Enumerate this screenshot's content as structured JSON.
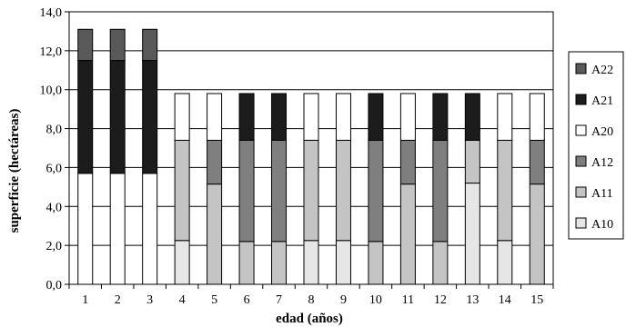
{
  "chart_data": {
    "type": "bar",
    "stacked": true,
    "xlabel": "edad (años)",
    "ylabel": "superficie (hectáreas)",
    "ylim": [
      0,
      14
    ],
    "yticks": [
      "0,0",
      "2,0",
      "4,0",
      "6,0",
      "8,0",
      "10,0",
      "12,0",
      "14,0"
    ],
    "categories": [
      "1",
      "2",
      "3",
      "4",
      "5",
      "6",
      "7",
      "8",
      "9",
      "10",
      "11",
      "12",
      "13",
      "14",
      "15"
    ],
    "grid": true,
    "legend_position": "right",
    "series": [
      {
        "name": "A10",
        "color": "#e6e6e6",
        "values": [
          0,
          0,
          0,
          2.25,
          0,
          0,
          0,
          2.25,
          2.25,
          0,
          0,
          0,
          5.2,
          2.25,
          0
        ]
      },
      {
        "name": "A11",
        "color": "#c4c4c4",
        "values": [
          0,
          0,
          0,
          5.15,
          5.15,
          2.2,
          2.2,
          5.15,
          5.15,
          2.2,
          5.15,
          2.2,
          2.2,
          5.15,
          5.15
        ]
      },
      {
        "name": "A12",
        "color": "#7f7f7f",
        "values": [
          0,
          0,
          0,
          0,
          2.25,
          5.2,
          5.2,
          0,
          0,
          5.2,
          2.25,
          5.2,
          0,
          0,
          2.25
        ]
      },
      {
        "name": "A20",
        "color": "#ffffff",
        "values": [
          5.7,
          5.7,
          5.7,
          2.4,
          2.4,
          0,
          0,
          2.4,
          2.4,
          0,
          2.4,
          0,
          0,
          2.4,
          2.4
        ]
      },
      {
        "name": "A21",
        "color": "#1c1c1c",
        "values": [
          5.8,
          5.8,
          5.8,
          0,
          0,
          2.4,
          2.4,
          0,
          0,
          2.4,
          0,
          2.4,
          2.4,
          0,
          0
        ]
      },
      {
        "name": "A22",
        "color": "#595959",
        "values": [
          1.6,
          1.6,
          1.6,
          0,
          0,
          0,
          0,
          0,
          0,
          0,
          0,
          0,
          0,
          0,
          0
        ]
      }
    ],
    "legend_order": [
      "A22",
      "A21",
      "A20",
      "A12",
      "A11",
      "A10"
    ]
  }
}
